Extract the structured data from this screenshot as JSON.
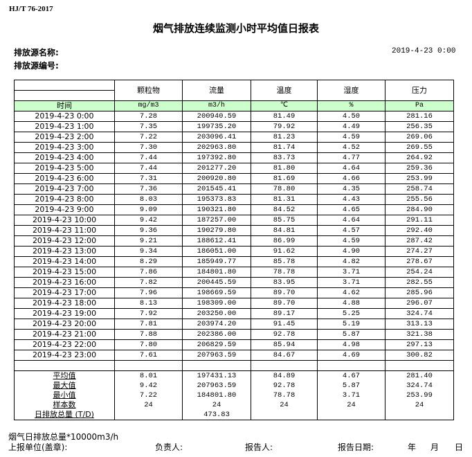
{
  "standard": "HJ/T  76-2017",
  "title": "烟气排放连续监测小时平均值日报表",
  "source_name_label": "排放源名称:",
  "source_id_label": "排放源编号:",
  "report_datetime": "2019-4-23 0:00",
  "columns": [
    "颗粒物",
    "流量",
    "温度",
    "湿度",
    "压力"
  ],
  "time_label": "时间",
  "units": [
    "mg/m3",
    "m3/h",
    "℃",
    "%",
    "Pa"
  ],
  "rows": [
    [
      "2019-4-23 0:00",
      "7.28",
      "200940.59",
      "81.49",
      "4.50",
      "281.16"
    ],
    [
      "2019-4-23 1:00",
      "7.35",
      "199735.20",
      "79.92",
      "4.49",
      "256.35"
    ],
    [
      "2019-4-23 2:00",
      "7.22",
      "203096.41",
      "81.23",
      "4.59",
      "269.06"
    ],
    [
      "2019-4-23 3:00",
      "7.30",
      "202963.80",
      "81.74",
      "4.52",
      "269.55"
    ],
    [
      "2019-4-23 4:00",
      "7.44",
      "197392.80",
      "83.73",
      "4.77",
      "264.92"
    ],
    [
      "2019-4-23 5:00",
      "7.44",
      "201277.20",
      "81.80",
      "4.64",
      "259.36"
    ],
    [
      "2019-4-23 6:00",
      "7.31",
      "200920.80",
      "81.69",
      "4.66",
      "253.99"
    ],
    [
      "2019-4-23 7:00",
      "7.36",
      "201545.41",
      "78.80",
      "4.35",
      "258.74"
    ],
    [
      "2019-4-23 8:00",
      "8.03",
      "195373.83",
      "81.31",
      "4.43",
      "255.56"
    ],
    [
      "2019-4-23 9:00",
      "9.09",
      "190321.80",
      "84.52",
      "4.65",
      "284.90"
    ],
    [
      "2019-4-23 10:00",
      "9.42",
      "187257.00",
      "85.75",
      "4.64",
      "291.11"
    ],
    [
      "2019-4-23 11:00",
      "9.36",
      "190279.80",
      "84.81",
      "4.57",
      "292.40"
    ],
    [
      "2019-4-23 12:00",
      "9.21",
      "188612.41",
      "86.99",
      "4.59",
      "287.42"
    ],
    [
      "2019-4-23 13:00",
      "9.34",
      "186051.00",
      "91.62",
      "4.90",
      "274.27"
    ],
    [
      "2019-4-23 14:00",
      "8.29",
      "185949.77",
      "85.78",
      "4.82",
      "278.67"
    ],
    [
      "2019-4-23 15:00",
      "7.86",
      "184801.80",
      "78.78",
      "3.71",
      "254.24"
    ],
    [
      "2019-4-23 16:00",
      "7.82",
      "200445.59",
      "83.95",
      "3.71",
      "282.55"
    ],
    [
      "2019-4-23 17:00",
      "7.96",
      "198669.59",
      "89.70",
      "4.62",
      "285.96"
    ],
    [
      "2019-4-23 18:00",
      "8.13",
      "198309.00",
      "89.70",
      "4.88",
      "296.07"
    ],
    [
      "2019-4-23 19:00",
      "7.92",
      "203250.00",
      "89.17",
      "5.25",
      "324.74"
    ],
    [
      "2019-4-23 20:00",
      "7.81",
      "203974.20",
      "91.45",
      "5.19",
      "313.13"
    ],
    [
      "2019-4-23 21:00",
      "7.88",
      "202386.00",
      "92.78",
      "5.87",
      "321.38"
    ],
    [
      "2019-4-23 22:00",
      "7.80",
      "206829.59",
      "85.94",
      "4.98",
      "297.13"
    ],
    [
      "2019-4-23 23:00",
      "7.61",
      "207963.59",
      "84.67",
      "4.69",
      "300.82"
    ]
  ],
  "summary": [
    [
      "平均值",
      "8.01",
      "197431.13",
      "84.89",
      "4.67",
      "281.40"
    ],
    [
      "最大值",
      "9.42",
      "207963.59",
      "92.78",
      "5.87",
      "324.74"
    ],
    [
      "最小值",
      "7.22",
      "184801.80",
      "78.78",
      "3.71",
      "253.99"
    ],
    [
      "样本数",
      "24",
      "24",
      "24",
      "24",
      "24"
    ],
    [
      "日排放总量 (T/D)",
      "",
      "473.83",
      "",
      "",
      ""
    ]
  ],
  "footer": {
    "note": "烟气日排放总量*10000m3/h",
    "unit_label": "上报单位(盖章):",
    "manager_label": "负责人:",
    "reporter_label": "报告人:",
    "report_date_label": "报告日期:",
    "year": "年",
    "month": "月",
    "day": "日"
  }
}
